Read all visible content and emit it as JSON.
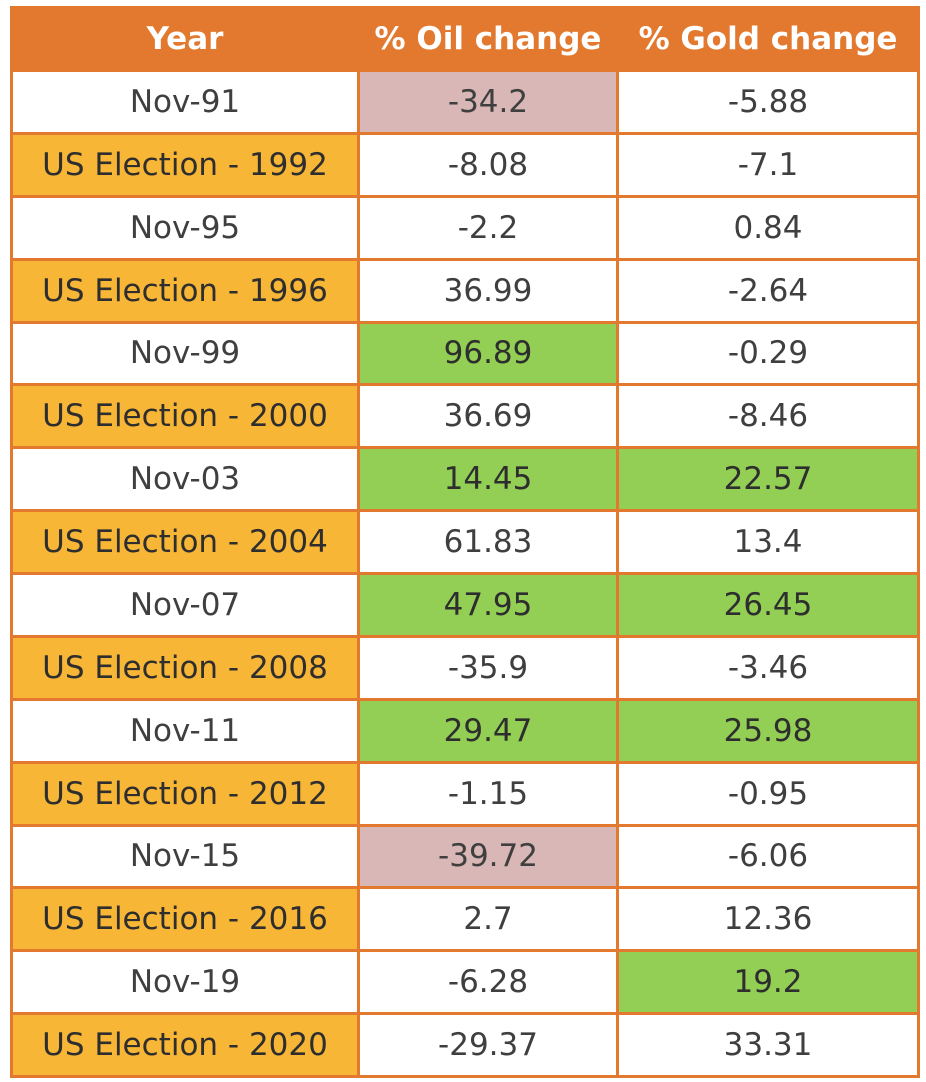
{
  "table": {
    "header": [
      "Year",
      "% Oil change",
      "% Gold change"
    ],
    "rows": [
      [
        "Nov-91",
        -34.2,
        -5.88
      ],
      [
        "US Election - 1992",
        -8.08,
        -7.1
      ],
      [
        "Nov-95",
        -2.2,
        0.84
      ],
      [
        "US Election - 1996",
        36.99,
        -2.64
      ],
      [
        "Nov-99",
        96.89,
        -0.29
      ],
      [
        "US Election - 2000",
        36.69,
        -8.46
      ],
      [
        "Nov-03",
        14.45,
        22.57
      ],
      [
        "US Election - 2004",
        61.83,
        13.4
      ],
      [
        "Nov-07",
        47.95,
        26.45
      ],
      [
        "US Election - 2008",
        -35.9,
        -3.46
      ],
      [
        "Nov-11",
        29.47,
        25.98
      ],
      [
        "US Election - 2012",
        -1.15,
        -0.95
      ],
      [
        "Nov-15",
        -39.72,
        -6.06
      ],
      [
        "US Election - 2016",
        2.7,
        12.36
      ],
      [
        "Nov-19",
        -6.28,
        19.2
      ],
      [
        "US Election - 2020",
        -29.37,
        33.31
      ]
    ]
  }
}
